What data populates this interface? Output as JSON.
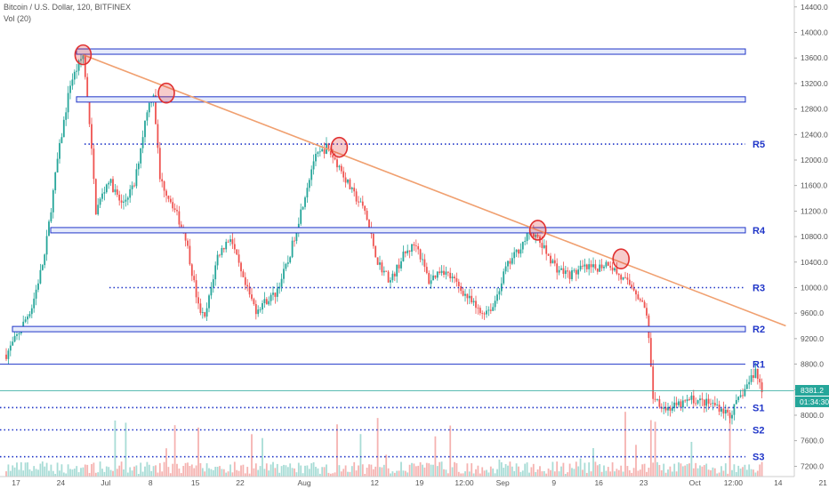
{
  "header": {
    "symbol_line": "Bitcoin / U.S. Dollar, 120, BITFINEX",
    "volume_line": "Vol (20)"
  },
  "chart_data": {
    "type": "candlestick",
    "title": "Bitcoin / U.S. Dollar, 120, BITFINEX",
    "indicator": "Vol (20)",
    "ylim": [
      7100,
      14600
    ],
    "y_ticks": [
      "14400.0",
      "14000.0",
      "13600.0",
      "13200.0",
      "12800.0",
      "12400.0",
      "12000.0",
      "11600.0",
      "11200.0",
      "10800.0",
      "10400.0",
      "10000.0",
      "9600.0",
      "9200.0",
      "8800.0",
      "8400.0",
      "8000.0",
      "7600.0",
      "7200.0"
    ],
    "x_ticks": [
      {
        "label": "17",
        "i": 0
      },
      {
        "label": "24",
        "i": 7
      },
      {
        "label": "Jul",
        "i": 14
      },
      {
        "label": "8",
        "i": 21
      },
      {
        "label": "15",
        "i": 28
      },
      {
        "label": "22",
        "i": 35
      },
      {
        "label": "Aug",
        "i": 45
      },
      {
        "label": "12",
        "i": 56
      },
      {
        "label": "19",
        "i": 63
      },
      {
        "label": "12:00",
        "i": 70
      },
      {
        "label": "Sep",
        "i": 76
      },
      {
        "label": "9",
        "i": 84
      },
      {
        "label": "16",
        "i": 91
      },
      {
        "label": "23",
        "i": 98
      },
      {
        "label": "Oct",
        "i": 106
      },
      {
        "label": "12:00",
        "i": 112
      },
      {
        "label": "14",
        "i": 119
      },
      {
        "label": "21",
        "i": 126
      }
    ],
    "price_path": [
      [
        0,
        8950
      ],
      [
        2,
        9300
      ],
      [
        4,
        9700
      ],
      [
        6,
        10500
      ],
      [
        8,
        12000
      ],
      [
        10,
        13200
      ],
      [
        12,
        13650
      ],
      [
        13,
        12600
      ],
      [
        14,
        11200
      ],
      [
        16,
        11700
      ],
      [
        18,
        11300
      ],
      [
        20,
        11600
      ],
      [
        22,
        12800
      ],
      [
        23,
        13050
      ],
      [
        24,
        11700
      ],
      [
        26,
        11300
      ],
      [
        28,
        10800
      ],
      [
        30,
        9700
      ],
      [
        31,
        9500
      ],
      [
        33,
        10500
      ],
      [
        35,
        10800
      ],
      [
        37,
        10100
      ],
      [
        39,
        9650
      ],
      [
        40,
        9750
      ],
      [
        42,
        9900
      ],
      [
        44,
        10400
      ],
      [
        46,
        11200
      ],
      [
        48,
        12000
      ],
      [
        50,
        12200
      ],
      [
        52,
        11900
      ],
      [
        54,
        11500
      ],
      [
        56,
        11200
      ],
      [
        58,
        10400
      ],
      [
        60,
        10100
      ],
      [
        62,
        10500
      ],
      [
        64,
        10700
      ],
      [
        66,
        10100
      ],
      [
        68,
        10300
      ],
      [
        70,
        10100
      ],
      [
        72,
        9850
      ],
      [
        74,
        9600
      ],
      [
        76,
        9700
      ],
      [
        78,
        10300
      ],
      [
        80,
        10600
      ],
      [
        82,
        10900
      ],
      [
        84,
        10600
      ],
      [
        86,
        10300
      ],
      [
        88,
        10200
      ],
      [
        90,
        10300
      ],
      [
        92,
        10300
      ],
      [
        94,
        10400
      ],
      [
        96,
        10150
      ],
      [
        98,
        10000
      ],
      [
        100,
        9600
      ],
      [
        101,
        8300
      ],
      [
        103,
        8100
      ],
      [
        105,
        8150
      ],
      [
        107,
        8250
      ],
      [
        109,
        8200
      ],
      [
        111,
        8150
      ],
      [
        113,
        8000
      ],
      [
        115,
        8350
      ],
      [
        117,
        8700
      ],
      [
        118,
        8400
      ]
    ],
    "levels": [
      {
        "label": "",
        "price": 13700,
        "style": "box"
      },
      {
        "label": "",
        "price": 12950,
        "style": "box"
      },
      {
        "label": "R5",
        "price": 12250,
        "style": "dotted"
      },
      {
        "label": "R4",
        "price": 10900,
        "style": "box"
      },
      {
        "label": "R3",
        "price": 10000,
        "style": "dotted"
      },
      {
        "label": "R2",
        "price": 9350,
        "style": "box"
      },
      {
        "label": "R1",
        "price": 8800,
        "style": "solid"
      },
      {
        "label": "S1",
        "price": 8120,
        "style": "dotted"
      },
      {
        "label": "S2",
        "price": 7770,
        "style": "dotted"
      },
      {
        "label": "S3",
        "price": 7350,
        "style": "dotted"
      }
    ],
    "trendline": [
      [
        12,
        13650
      ],
      [
        122,
        9400
      ]
    ],
    "circled_highs": [
      [
        12,
        13650
      ],
      [
        25,
        13050
      ],
      [
        52,
        12200
      ],
      [
        83,
        10900
      ],
      [
        96,
        10450
      ]
    ],
    "last_price": "8381.2",
    "countdown": "01:34:30",
    "colors": {
      "up": "#26a69a",
      "down": "#ef5350",
      "level": "#1f35c8",
      "trend": "#f0a070",
      "circle": "#e03030",
      "price_line": "#26a69a"
    }
  }
}
